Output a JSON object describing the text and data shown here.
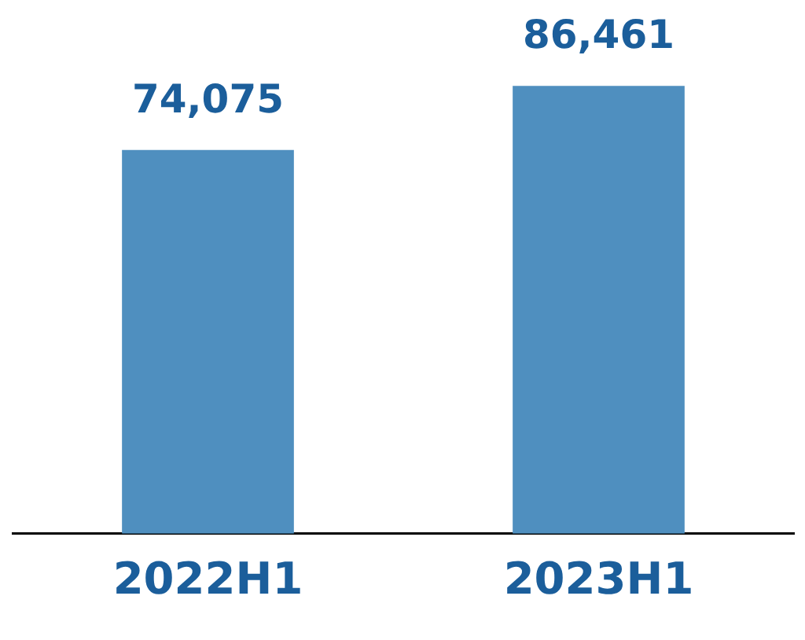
{
  "chart_data": {
    "type": "bar",
    "categories": [
      "2022H1",
      "2023H1"
    ],
    "values": [
      74075,
      86461
    ],
    "value_labels": [
      "74,075",
      "86,461"
    ],
    "color": "#4f8fbf",
    "grid": false,
    "legend": false
  }
}
